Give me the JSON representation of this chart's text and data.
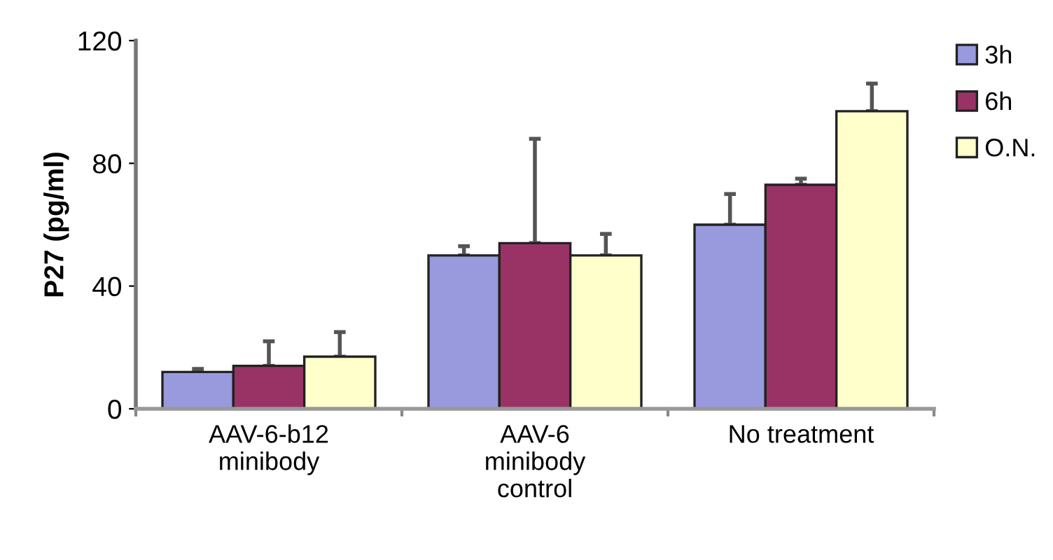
{
  "chart_data": {
    "type": "bar",
    "ylabel": "P27 (pg/ml)",
    "categories": [
      "AAV-6-b12\nminibody",
      "AAV-6\nminibody\ncontrol",
      "No treatment"
    ],
    "series": [
      {
        "name": "3h",
        "color": "#9999dd",
        "values": [
          12,
          50,
          60
        ],
        "errors": [
          [
            12,
            13
          ],
          [
            50,
            53
          ],
          [
            60,
            70
          ]
        ]
      },
      {
        "name": "6h",
        "color": "#993366",
        "values": [
          14,
          54,
          73
        ],
        "errors": [
          [
            14,
            22
          ],
          [
            54,
            88
          ],
          [
            73,
            75
          ]
        ]
      },
      {
        "name": "O.N.",
        "color": "#ffffcc",
        "values": [
          17,
          50,
          97
        ],
        "errors": [
          [
            17,
            25
          ],
          [
            50,
            57
          ],
          [
            97,
            106
          ]
        ]
      }
    ],
    "ylim": [
      0,
      120
    ],
    "yticks": [
      0,
      40,
      80,
      120
    ],
    "grid": false,
    "legend": "top right"
  }
}
